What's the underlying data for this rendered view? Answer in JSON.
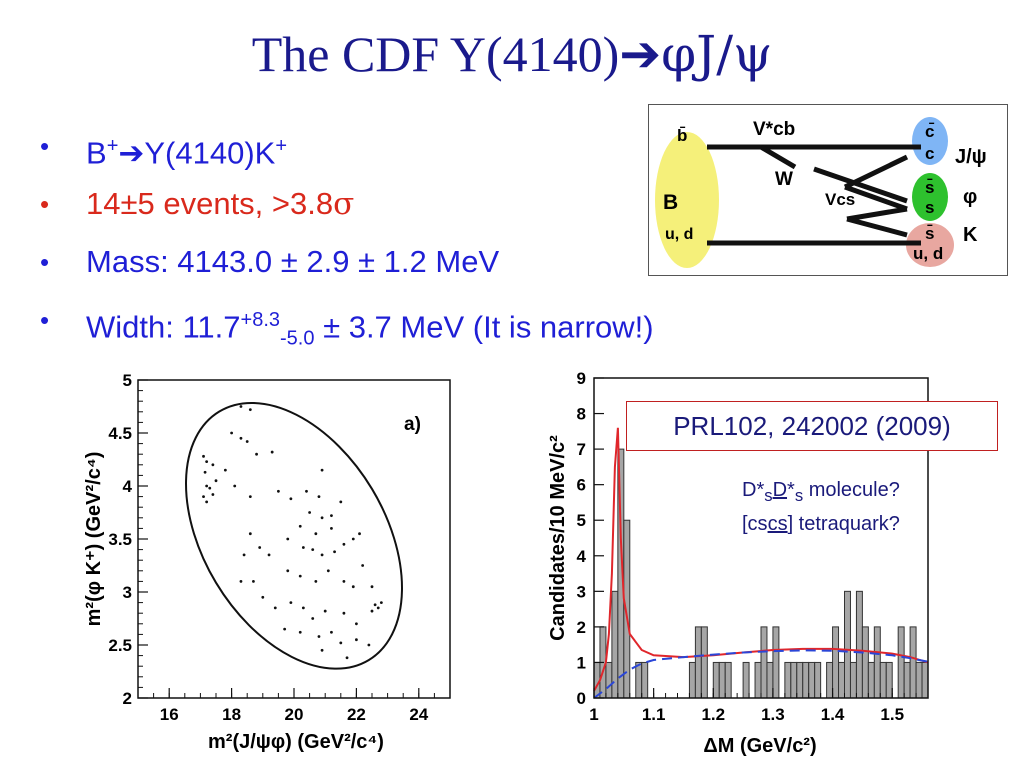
{
  "slide": {
    "title_main": "The CDF Y(4140)",
    "title_arrow": "➔",
    "title_end": "φJ/ψ",
    "bullets": [
      {
        "dot": "•",
        "p1": "B",
        "p1_sup": "+",
        "arrow": "➔",
        "p2": "Y(4140)K",
        "p2_sup": "+"
      },
      {
        "dot": "•",
        "text": "14±5 events, >3.8",
        "sigma": "σ"
      },
      {
        "dot": "•",
        "text": "Mass: 4143.0 ± 2.9 ± 1.2 MeV"
      },
      {
        "dot": "•",
        "p1": "Width: 11.7",
        "sup": "+8.3",
        "sub": "-5.0",
        "p2": " ± 3.7 MeV (It is narrow!)"
      }
    ]
  },
  "diagram": {
    "quark_left_top": "b̄",
    "label_B": "B",
    "quark_left_bottom": "u, d",
    "label_Vcb": "V*cb",
    "label_W": "W",
    "label_Vcs": "Vcs",
    "right_quarks": [
      "c̄",
      "c",
      "s̄",
      "s",
      "s̄",
      "u, d"
    ],
    "label_jpsi": "J/ψ",
    "label_phi": "φ",
    "label_K": "K",
    "colors": {
      "B": "#f5f07a",
      "jpsi": "#7fb5f5",
      "phi": "#2ec12e",
      "K": "#e8a7a0"
    }
  },
  "prl_box": "PRL102, 242002 (2009)",
  "annotations": {
    "line1": {
      "a": "D*",
      "b": "s",
      "c": "D",
      "d": "*",
      "e": "s",
      "f": " molecule?"
    },
    "line2": {
      "a": "[cs",
      "b": "cs",
      "c": "] tetraquark?"
    }
  },
  "chart_data": [
    {
      "type": "scatter",
      "panel_label": "a)",
      "xlabel": "m²(J/ψφ)  (GeV²/c⁴)",
      "ylabel": "m²(φ K⁺)  (GeV²/c⁴)",
      "xlim": [
        15,
        25
      ],
      "ylim": [
        2,
        5
      ],
      "xticks": [
        "16",
        "18",
        "20",
        "22",
        "24"
      ],
      "yticks": [
        "2",
        "2.5",
        "3",
        "3.5",
        "4",
        "4.5",
        "5"
      ],
      "boundary": "ellipse",
      "points": [
        [
          17.1,
          4.28
        ],
        [
          17.2,
          4.23
        ],
        [
          17.15,
          4.13
        ],
        [
          17.2,
          4.0
        ],
        [
          17.3,
          3.98
        ],
        [
          17.4,
          3.92
        ],
        [
          17.1,
          3.9
        ],
        [
          17.2,
          3.85
        ],
        [
          17.4,
          4.2
        ],
        [
          17.5,
          4.05
        ],
        [
          17.8,
          4.15
        ],
        [
          18.0,
          4.5
        ],
        [
          18.3,
          4.45
        ],
        [
          18.5,
          4.42
        ],
        [
          18.6,
          4.72
        ],
        [
          18.3,
          4.75
        ],
        [
          18.8,
          4.3
        ],
        [
          19.3,
          4.32
        ],
        [
          18.1,
          4.0
        ],
        [
          18.6,
          3.9
        ],
        [
          19.5,
          3.95
        ],
        [
          19.9,
          3.88
        ],
        [
          20.4,
          3.95
        ],
        [
          20.9,
          4.15
        ],
        [
          20.8,
          3.9
        ],
        [
          20.5,
          3.75
        ],
        [
          20.9,
          3.7
        ],
        [
          21.2,
          3.72
        ],
        [
          21.5,
          3.85
        ],
        [
          21.2,
          3.6
        ],
        [
          20.7,
          3.55
        ],
        [
          20.2,
          3.62
        ],
        [
          19.8,
          3.5
        ],
        [
          20.3,
          3.42
        ],
        [
          20.6,
          3.4
        ],
        [
          20.9,
          3.35
        ],
        [
          21.3,
          3.38
        ],
        [
          21.6,
          3.45
        ],
        [
          21.9,
          3.5
        ],
        [
          22.1,
          3.55
        ],
        [
          18.6,
          3.55
        ],
        [
          18.4,
          3.35
        ],
        [
          18.9,
          3.42
        ],
        [
          19.2,
          3.35
        ],
        [
          19.8,
          3.2
        ],
        [
          20.2,
          3.15
        ],
        [
          20.7,
          3.1
        ],
        [
          21.1,
          3.2
        ],
        [
          21.6,
          3.1
        ],
        [
          22.2,
          3.25
        ],
        [
          21.9,
          3.05
        ],
        [
          22.5,
          3.05
        ],
        [
          22.6,
          2.88
        ],
        [
          22.7,
          2.85
        ],
        [
          22.8,
          2.9
        ],
        [
          22.5,
          2.82
        ],
        [
          19.0,
          2.95
        ],
        [
          19.4,
          2.85
        ],
        [
          19.9,
          2.9
        ],
        [
          20.3,
          2.85
        ],
        [
          20.6,
          2.75
        ],
        [
          21.0,
          2.82
        ],
        [
          21.6,
          2.8
        ],
        [
          20.2,
          2.62
        ],
        [
          20.8,
          2.58
        ],
        [
          21.2,
          2.62
        ],
        [
          21.5,
          2.52
        ],
        [
          22.0,
          2.55
        ],
        [
          22.4,
          2.5
        ],
        [
          20.9,
          2.45
        ],
        [
          21.7,
          2.38
        ],
        [
          18.7,
          3.1
        ],
        [
          18.3,
          3.1
        ],
        [
          19.7,
          2.65
        ],
        [
          22.0,
          2.7
        ]
      ]
    },
    {
      "type": "bar",
      "xlabel": "ΔM  (GeV/c²)",
      "ylabel": "Candidates/10 MeV/c²",
      "xlim": [
        1.0,
        1.56
      ],
      "ylim": [
        0,
        9
      ],
      "xticks": [
        "1",
        "1.1",
        "1.2",
        "1.3",
        "1.4",
        "1.5"
      ],
      "yticks": [
        "0",
        "1",
        "2",
        "3",
        "4",
        "5",
        "6",
        "7",
        "8",
        "9"
      ],
      "bin_width": 0.01,
      "bin_start": 1.0,
      "values": [
        1,
        2,
        1,
        3,
        7,
        5,
        0,
        1,
        1,
        0,
        0,
        0,
        0,
        0,
        0,
        0,
        1,
        2,
        2,
        0,
        1,
        1,
        1,
        0,
        0,
        1,
        0,
        1,
        2,
        1,
        2,
        0,
        1,
        1,
        1,
        1,
        1,
        1,
        0,
        1,
        2,
        1,
        3,
        1,
        3,
        2,
        1,
        2,
        1,
        1,
        0,
        2,
        1,
        2,
        1,
        1
      ],
      "series": [
        {
          "name": "fit",
          "color": "#e0262b",
          "style": "solid",
          "x": [
            1.0,
            1.01,
            1.02,
            1.025,
            1.03,
            1.035,
            1.04,
            1.045,
            1.05,
            1.06,
            1.08,
            1.1,
            1.15,
            1.2,
            1.25,
            1.3,
            1.35,
            1.4,
            1.45,
            1.5,
            1.53,
            1.56
          ],
          "y": [
            0.2,
            0.5,
            1.0,
            1.8,
            3.5,
            6.5,
            7.6,
            4.5,
            2.8,
            1.8,
            1.35,
            1.2,
            1.15,
            1.2,
            1.28,
            1.35,
            1.38,
            1.38,
            1.33,
            1.25,
            1.15,
            1.0
          ]
        },
        {
          "name": "background",
          "color": "#2a46d8",
          "style": "dashed",
          "x": [
            1.0,
            1.02,
            1.04,
            1.06,
            1.08,
            1.1,
            1.15,
            1.2,
            1.25,
            1.3,
            1.35,
            1.4,
            1.45,
            1.5,
            1.53,
            1.56
          ],
          "y": [
            0.0,
            0.25,
            0.55,
            0.8,
            0.97,
            1.07,
            1.15,
            1.22,
            1.28,
            1.32,
            1.34,
            1.33,
            1.28,
            1.2,
            1.12,
            1.02
          ]
        }
      ]
    }
  ]
}
